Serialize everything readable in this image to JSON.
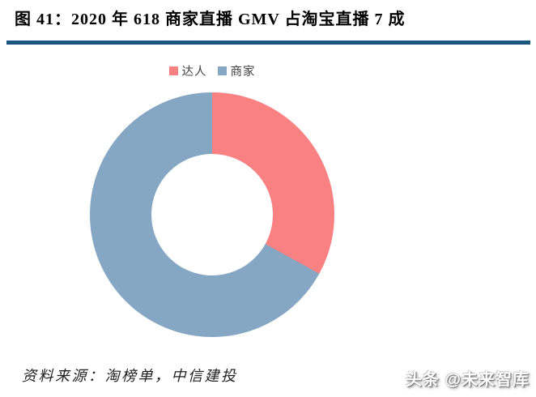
{
  "figure": {
    "title": "图 41：2020 年 618 商家直播 GMV 占淘宝直播 7 成"
  },
  "accent": {
    "title_rule_color": "#19587E"
  },
  "chart_data": {
    "type": "pie",
    "subtype": "donut",
    "title": "2020 年 618 商家直播 GMV 占淘宝直播 7 成",
    "labels": [
      "达人",
      "商家"
    ],
    "values": [
      33,
      67
    ],
    "unit": "%",
    "colors": [
      "#F98181",
      "#85A7C4"
    ],
    "legend_position": "top",
    "start_angle_deg": 0,
    "clockwise": true,
    "hole_ratio": 0.5,
    "annotations": []
  },
  "source": {
    "text": "资料来源：淘榜单，中信建投"
  },
  "watermark": {
    "text": "头条 @未来智库"
  }
}
